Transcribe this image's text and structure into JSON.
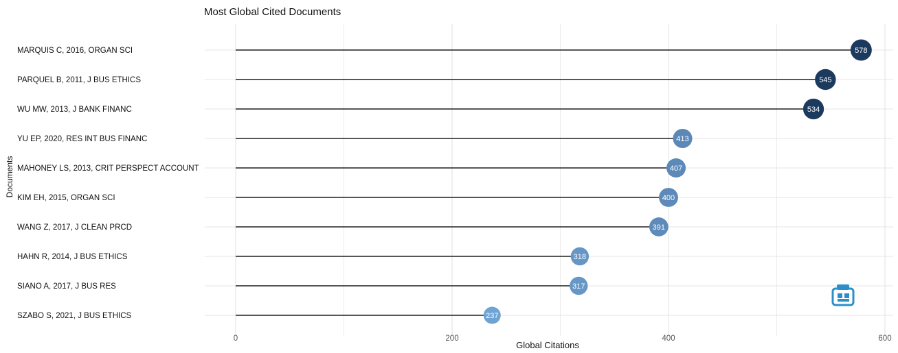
{
  "chart_data": {
    "type": "lollipop",
    "title": "Most Global Cited Documents",
    "xlabel": "Global Citations",
    "ylabel": "Documents",
    "xlim": [
      0,
      600
    ],
    "xticks": [
      0,
      200,
      400,
      600
    ],
    "grid": true,
    "categories": [
      "MARQUIS C, 2016, ORGAN SCI",
      "PARQUEL B, 2011, J BUS ETHICS",
      "WU MW, 2013, J BANK FINANC",
      "YU EP, 2020, RES INT BUS FINANC",
      "MAHONEY LS, 2013, CRIT PERSPECT ACCOUNT",
      "KIM EH, 2015, ORGAN SCI",
      "WANG Z, 2017, J CLEAN PRCD",
      "HAHN R, 2014, J BUS ETHICS",
      "SIANO A, 2017, J BUS RES",
      "SZABO S, 2021, J BUS ETHICS"
    ],
    "values": [
      578,
      545,
      534,
      413,
      407,
      400,
      391,
      318,
      317,
      237
    ],
    "colors": {
      "line": "#1f1f1f",
      "grid": "#e6e6e6",
      "dot_dark": "#1c3a5e",
      "dot_mid": "#5a86b5",
      "dot_light": "#6fa3d3",
      "label_text": "#ffffff"
    }
  },
  "watermark": {
    "icon": "bibliometrix-logo-icon"
  }
}
